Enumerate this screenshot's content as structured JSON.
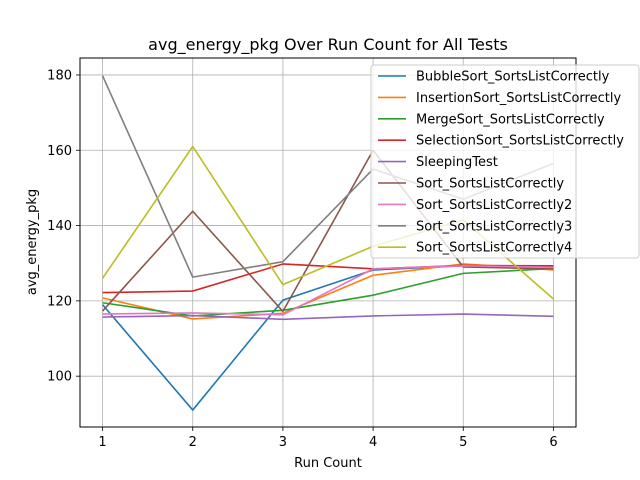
{
  "chart_data": {
    "type": "line",
    "title": "avg_energy_pkg Over Run Count for All Tests",
    "xlabel": "Run Count",
    "ylabel": "avg_energy_pkg",
    "x": [
      1,
      2,
      3,
      4,
      5,
      6
    ],
    "xticks": [
      "1",
      "2",
      "3",
      "4",
      "5",
      "6"
    ],
    "yticks": [
      "100",
      "120",
      "140",
      "160",
      "180"
    ],
    "xlim": [
      0.75,
      6.25
    ],
    "ylim": [
      86.5,
      184.5
    ],
    "grid": true,
    "legend_position": "top-right",
    "series": [
      {
        "name": "BubbleSort_SortsListCorrectly",
        "color": "#1f77b4",
        "values": [
          119.0,
          91.0,
          120.2,
          128.2,
          129.3,
          129.0
        ]
      },
      {
        "name": "InsertionSort_SortsListCorrectly",
        "color": "#ff7f0e",
        "values": [
          120.8,
          115.2,
          116.7,
          126.8,
          129.8,
          128.2
        ]
      },
      {
        "name": "MergeSort_SortsListCorrectly",
        "color": "#2ca02c",
        "values": [
          119.5,
          116.0,
          117.5,
          121.5,
          127.3,
          128.6
        ]
      },
      {
        "name": "SelectionSort_SortsListCorrectly",
        "color": "#d62728",
        "values": [
          122.2,
          122.6,
          129.8,
          128.5,
          129.4,
          129.3
        ]
      },
      {
        "name": "SleepingTest",
        "color": "#9467bd",
        "values": [
          115.7,
          116.1,
          115.1,
          116.0,
          116.5,
          115.9
        ]
      },
      {
        "name": "Sort_SortsListCorrectly",
        "color": "#8c564b",
        "values": [
          117.3,
          143.8,
          117.2,
          160.0,
          129.0,
          128.5
        ]
      },
      {
        "name": "Sort_SortsListCorrectly2",
        "color": "#e377c2",
        "values": [
          116.5,
          116.8,
          116.3,
          128.5,
          129.3,
          128.9
        ]
      },
      {
        "name": "Sort_SortsListCorrectly3",
        "color": "#7f7f7f",
        "values": [
          179.8,
          126.3,
          130.4,
          155.0,
          147.0,
          156.5
        ]
      },
      {
        "name": "Sort_SortsListCorrectly4",
        "color": "#bcbd22",
        "values": [
          126.0,
          161.0,
          124.3,
          134.5,
          141.5,
          120.5
        ]
      }
    ]
  }
}
